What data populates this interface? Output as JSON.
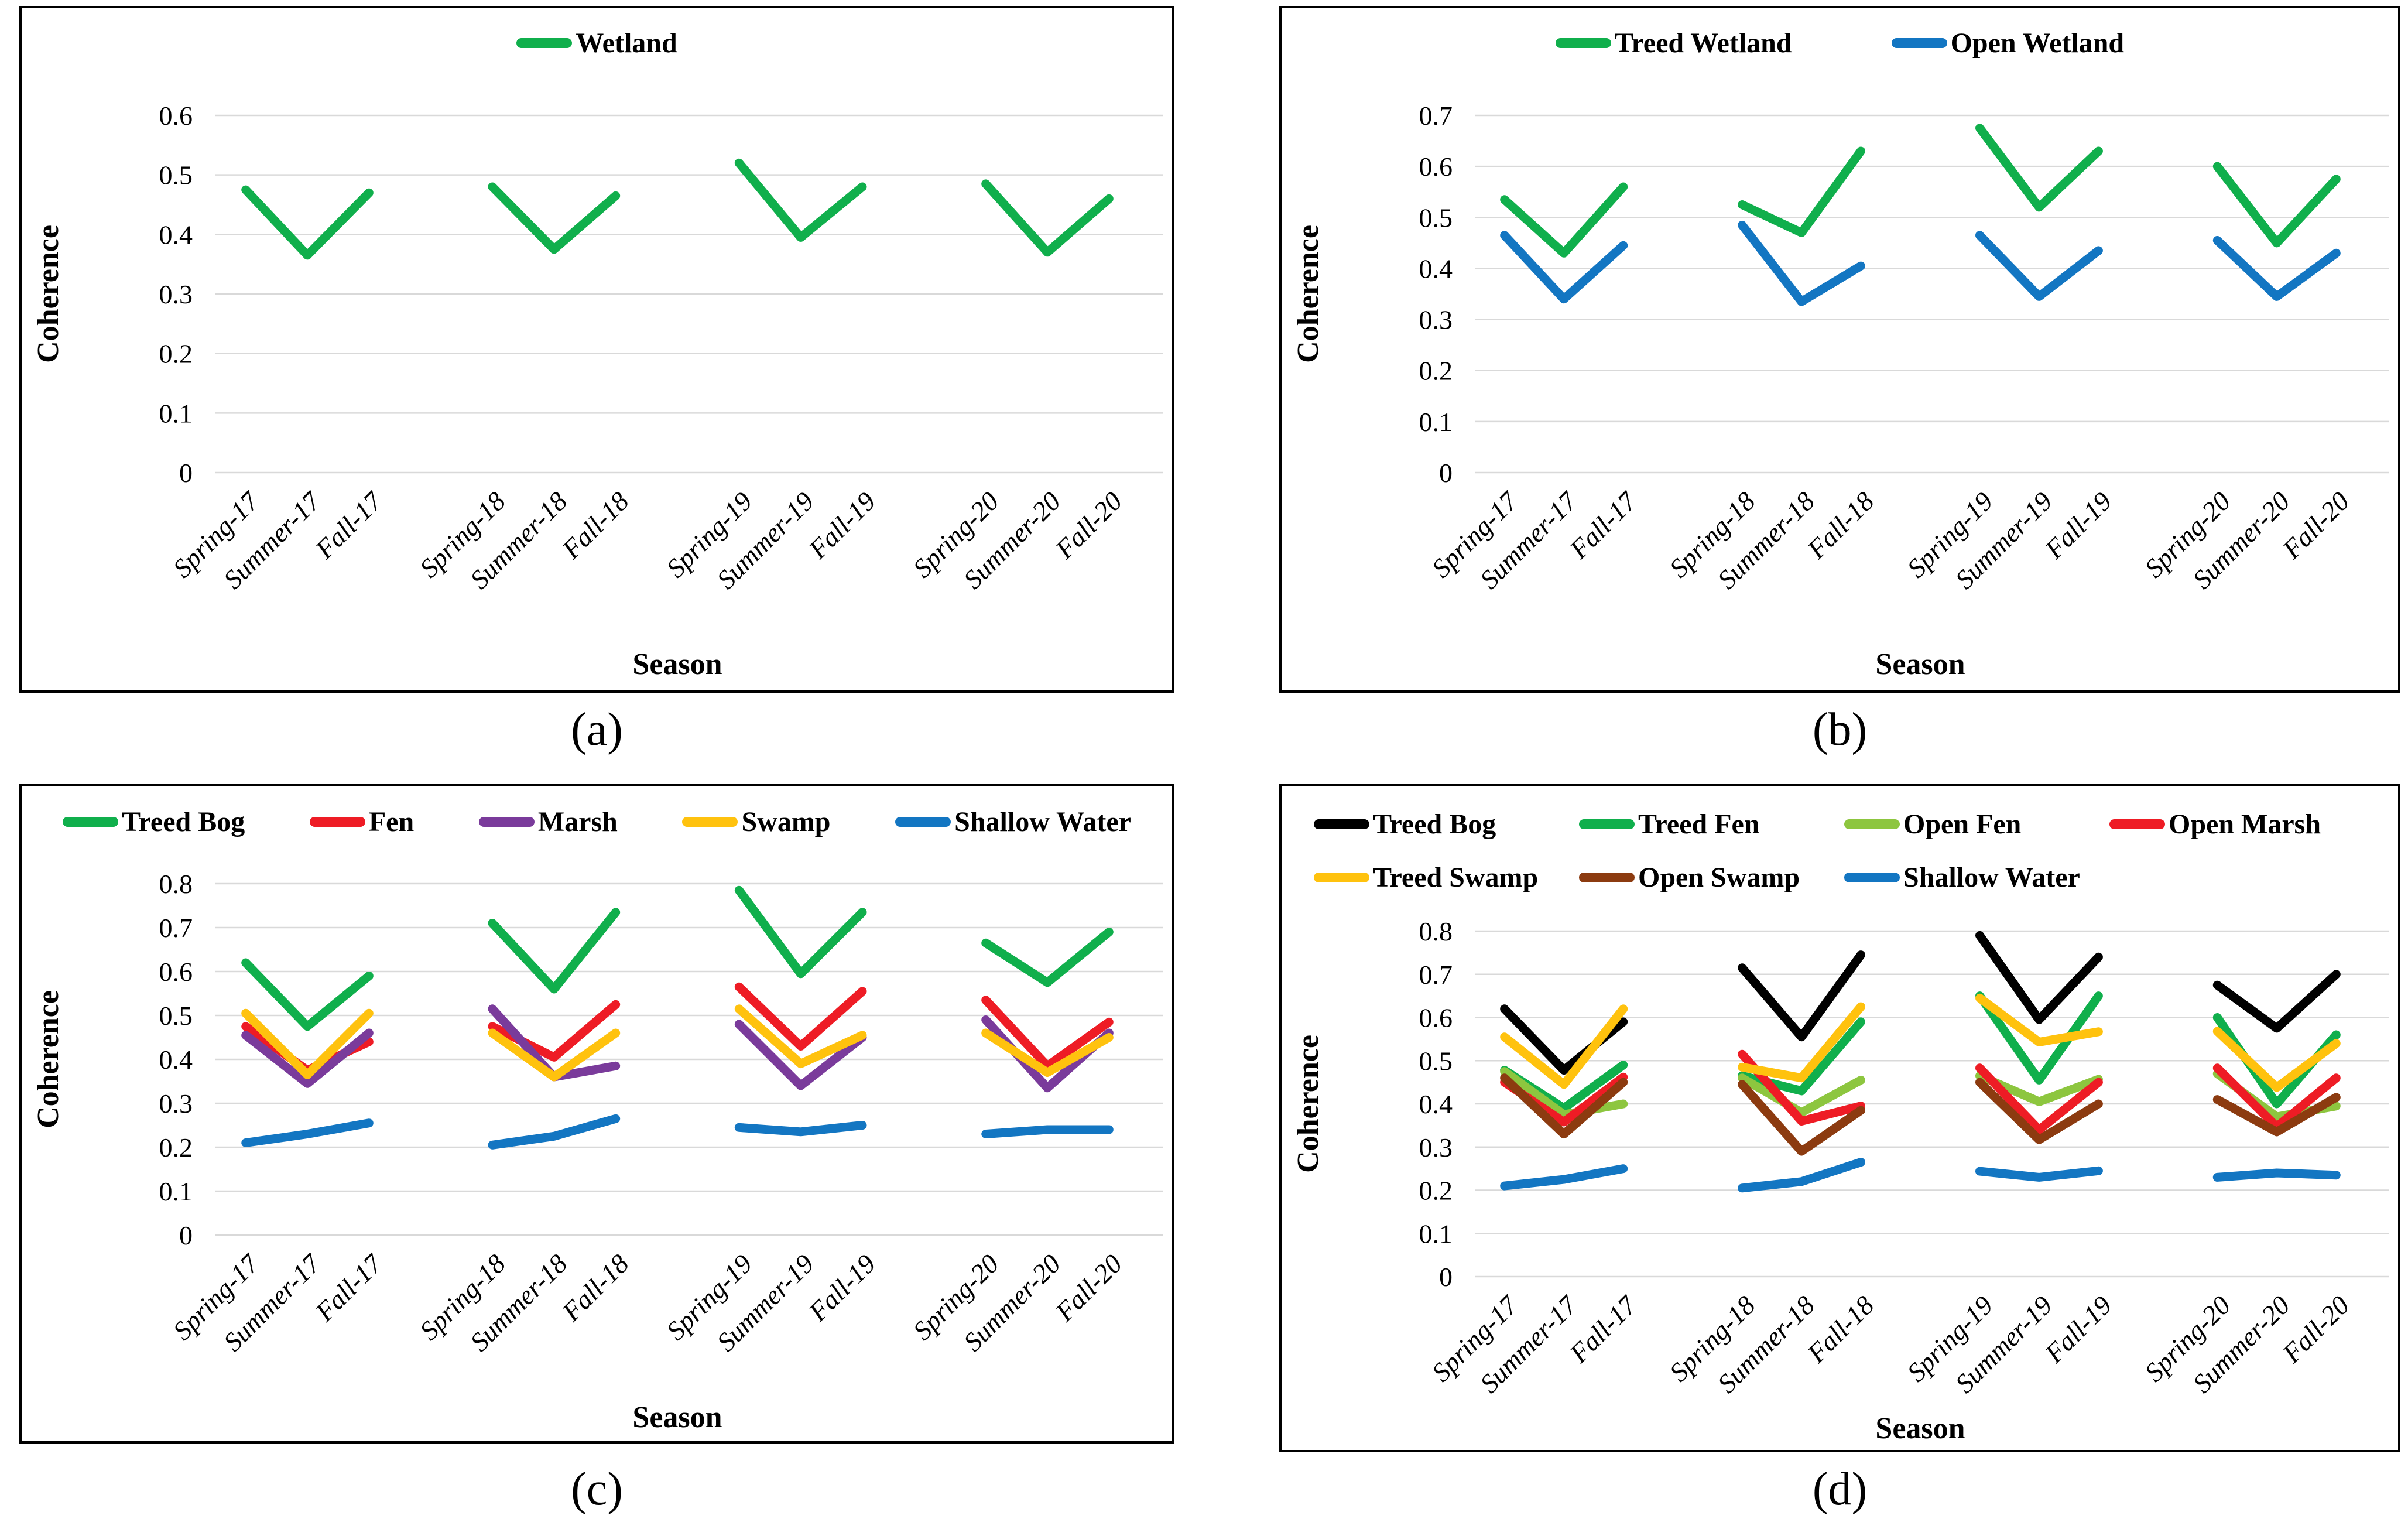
{
  "page": {
    "background": "#ffffff"
  },
  "chart_data": [
    {
      "id": "a",
      "type": "line",
      "caption": "(a)",
      "xlabel": "Season",
      "ylabel": "Coherence",
      "ylim": [
        0,
        0.6
      ],
      "ytick_step": 0.1,
      "yticks": [
        "0",
        "0.1",
        "0.2",
        "0.3",
        "0.4",
        "0.5",
        "0.6"
      ],
      "grid": true,
      "legend_position": "top-center",
      "categories": [
        "Spring-17",
        "Summer-17",
        "Fall-17",
        "Spring-18",
        "Summer-18",
        "Fall-18",
        "Spring-19",
        "Summer-19",
        "Fall-19",
        "Spring-20",
        "Summer-20",
        "Fall-20"
      ],
      "group_size": 3,
      "series": [
        {
          "name": "Wetland",
          "color": "#10AF4C",
          "values": [
            0.475,
            0.365,
            0.47,
            0.48,
            0.375,
            0.465,
            0.52,
            0.395,
            0.48,
            0.485,
            0.37,
            0.46
          ]
        }
      ]
    },
    {
      "id": "b",
      "type": "line",
      "caption": "(b)",
      "xlabel": "Season",
      "ylabel": "Coherence",
      "ylim": [
        0,
        0.7
      ],
      "ytick_step": 0.1,
      "yticks": [
        "0",
        "0.1",
        "0.2",
        "0.3",
        "0.4",
        "0.5",
        "0.6",
        "0.7"
      ],
      "grid": true,
      "legend_position": "top-center",
      "categories": [
        "Spring-17",
        "Summer-17",
        "Fall-17",
        "Spring-18",
        "Summer-18",
        "Fall-18",
        "Spring-19",
        "Summer-19",
        "Fall-19",
        "Spring-20",
        "Summer-20",
        "Fall-20"
      ],
      "group_size": 3,
      "series": [
        {
          "name": "Treed Wetland",
          "color": "#10AF4C",
          "values": [
            0.535,
            0.43,
            0.56,
            0.525,
            0.47,
            0.63,
            0.675,
            0.52,
            0.63,
            0.6,
            0.45,
            0.575
          ]
        },
        {
          "name": "Open Wetland",
          "color": "#1376C2",
          "values": [
            0.465,
            0.34,
            0.445,
            0.485,
            0.335,
            0.405,
            0.465,
            0.345,
            0.435,
            0.455,
            0.345,
            0.43
          ]
        }
      ]
    },
    {
      "id": "c",
      "type": "line",
      "caption": "(c)",
      "xlabel": "Season",
      "ylabel": "Coherence",
      "ylim": [
        0,
        0.8
      ],
      "ytick_step": 0.1,
      "yticks": [
        "0",
        "0.1",
        "0.2",
        "0.3",
        "0.4",
        "0.5",
        "0.6",
        "0.7",
        "0.8"
      ],
      "grid": true,
      "legend_position": "top-row",
      "categories": [
        "Spring-17",
        "Summer-17",
        "Fall-17",
        "Spring-18",
        "Summer-18",
        "Fall-18",
        "Spring-19",
        "Summer-19",
        "Fall-19",
        "Spring-20",
        "Summer-20",
        "Fall-20"
      ],
      "group_size": 3,
      "series": [
        {
          "name": "Treed Bog",
          "color": "#10AF4C",
          "values": [
            0.62,
            0.475,
            0.59,
            0.71,
            0.56,
            0.735,
            0.785,
            0.595,
            0.735,
            0.665,
            0.575,
            0.69
          ]
        },
        {
          "name": "Fen",
          "color": "#EE1C25",
          "values": [
            0.475,
            0.375,
            0.44,
            0.475,
            0.405,
            0.525,
            0.565,
            0.43,
            0.555,
            0.535,
            0.385,
            0.485
          ]
        },
        {
          "name": "Marsh",
          "color": "#7A3B9B",
          "values": [
            0.455,
            0.345,
            0.46,
            0.515,
            0.36,
            0.385,
            0.48,
            0.34,
            0.45,
            0.49,
            0.335,
            0.46
          ]
        },
        {
          "name": "Swamp",
          "color": "#FFC20E",
          "values": [
            0.505,
            0.365,
            0.505,
            0.46,
            0.36,
            0.46,
            0.515,
            0.39,
            0.455,
            0.46,
            0.37,
            0.45
          ]
        },
        {
          "name": "Shallow Water",
          "color": "#1376C2",
          "values": [
            0.21,
            0.23,
            0.255,
            0.205,
            0.225,
            0.265,
            0.245,
            0.235,
            0.25,
            0.23,
            0.24,
            0.24
          ]
        }
      ]
    },
    {
      "id": "d",
      "type": "line",
      "caption": "(d)",
      "xlabel": "Season",
      "ylabel": "Coherence",
      "ylim": [
        0,
        0.8
      ],
      "ytick_step": 0.1,
      "yticks": [
        "0",
        "0.1",
        "0.2",
        "0.3",
        "0.4",
        "0.5",
        "0.6",
        "0.7",
        "0.8"
      ],
      "grid": true,
      "legend_position": "top-grid-4col",
      "categories": [
        "Spring-17",
        "Summer-17",
        "Fall-17",
        "Spring-18",
        "Summer-18",
        "Fall-18",
        "Spring-19",
        "Summer-19",
        "Fall-19",
        "Spring-20",
        "Summer-20",
        "Fall-20"
      ],
      "group_size": 3,
      "series": [
        {
          "name": "Treed Bog",
          "color": "#000000",
          "values": [
            0.62,
            0.478,
            0.59,
            0.715,
            0.555,
            0.745,
            0.79,
            0.595,
            0.74,
            0.675,
            0.575,
            0.7
          ]
        },
        {
          "name": "Treed Fen",
          "color": "#10AF4C",
          "values": [
            0.478,
            0.39,
            0.49,
            0.465,
            0.43,
            0.59,
            0.65,
            0.455,
            0.65,
            0.6,
            0.4,
            0.56
          ]
        },
        {
          "name": "Open Fen",
          "color": "#8DC63F",
          "values": [
            0.475,
            0.375,
            0.4,
            0.46,
            0.38,
            0.455,
            0.465,
            0.405,
            0.457,
            0.47,
            0.37,
            0.395
          ]
        },
        {
          "name": "Open Marsh",
          "color": "#EE1C25",
          "values": [
            0.45,
            0.358,
            0.462,
            0.515,
            0.36,
            0.395,
            0.483,
            0.34,
            0.45,
            0.483,
            0.347,
            0.46
          ]
        },
        {
          "name": "Treed Swamp",
          "color": "#FFC20E",
          "values": [
            0.555,
            0.445,
            0.62,
            0.485,
            0.46,
            0.625,
            0.645,
            0.543,
            0.567,
            0.568,
            0.438,
            0.54
          ]
        },
        {
          "name": "Open Swamp",
          "color": "#8C3B10",
          "values": [
            0.46,
            0.33,
            0.45,
            0.445,
            0.29,
            0.385,
            0.45,
            0.317,
            0.4,
            0.41,
            0.335,
            0.415
          ]
        },
        {
          "name": "Shallow Water",
          "color": "#1376C2",
          "values": [
            0.21,
            0.225,
            0.25,
            0.205,
            0.22,
            0.265,
            0.244,
            0.23,
            0.245,
            0.23,
            0.24,
            0.235
          ]
        }
      ]
    }
  ]
}
